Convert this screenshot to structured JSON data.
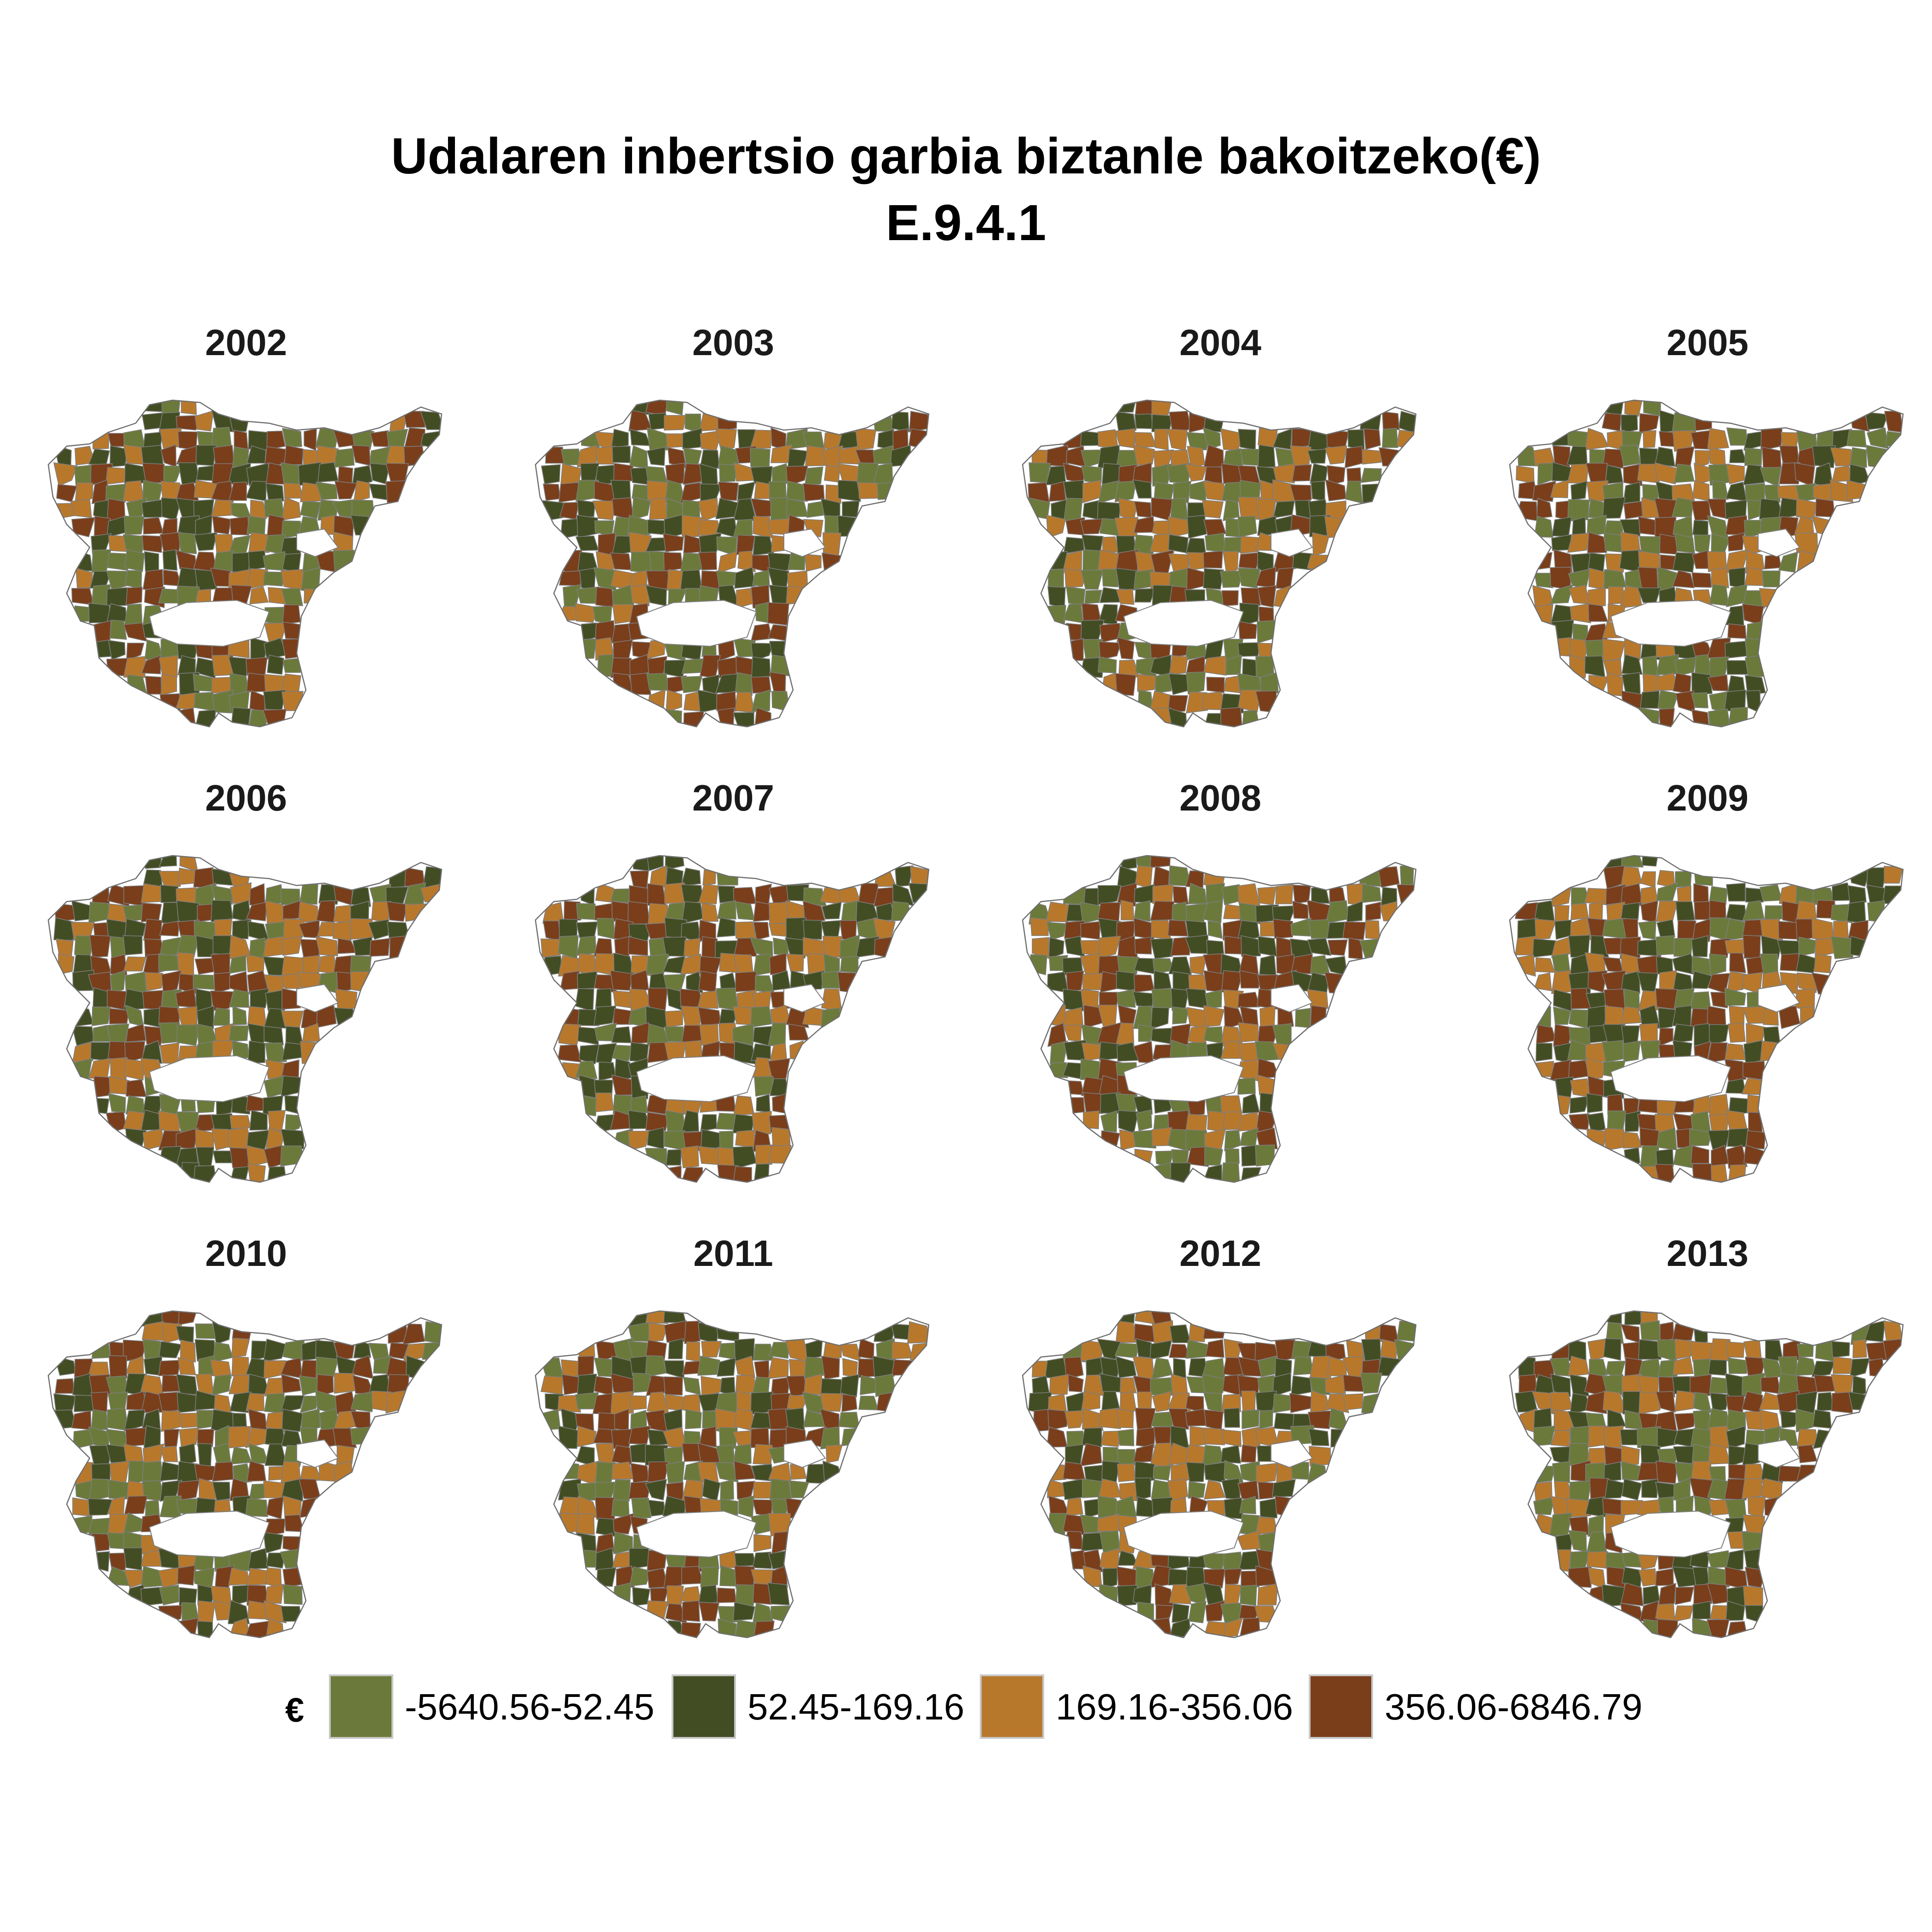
{
  "title": "Udalaren inbertsio garbia biztanle bakoitzeko(€)",
  "subtitle": "E.9.4.1",
  "legend": {
    "title": "€",
    "classes": [
      {
        "label": "-5640.56-52.45",
        "color": "#6b7a3a"
      },
      {
        "label": "52.45-169.16",
        "color": "#434d23"
      },
      {
        "label": "169.16-356.06",
        "color": "#b8782c"
      },
      {
        "label": "356.06-6846.79",
        "color": "#7a3e1b"
      }
    ]
  },
  "panels": [
    {
      "year": "2002"
    },
    {
      "year": "2003"
    },
    {
      "year": "2004"
    },
    {
      "year": "2005"
    },
    {
      "year": "2006"
    },
    {
      "year": "2007"
    },
    {
      "year": "2008"
    },
    {
      "year": "2009"
    },
    {
      "year": "2010"
    },
    {
      "year": "2011"
    },
    {
      "year": "2012"
    },
    {
      "year": "2013"
    }
  ]
}
